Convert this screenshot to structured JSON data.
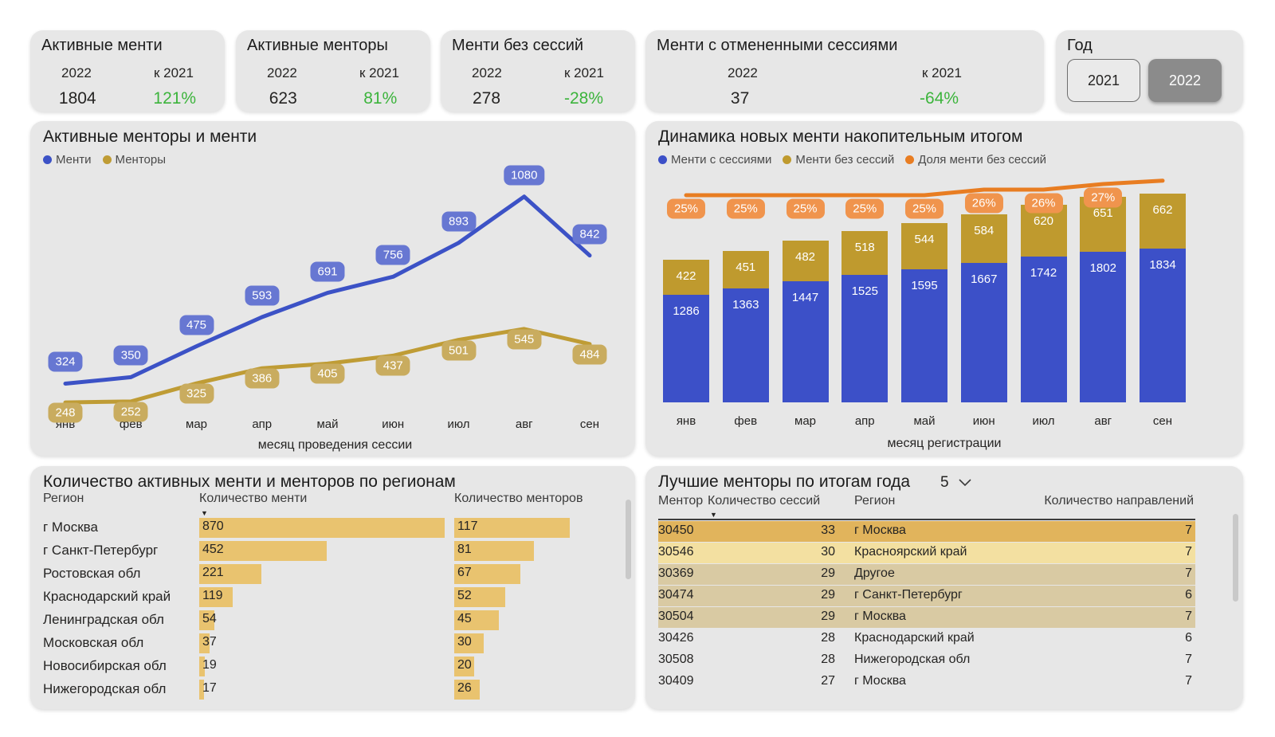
{
  "colors": {
    "positive_green": "#3cb43c",
    "mentee_blue": "#3c52c6",
    "mentor_gold": "#bf9c35",
    "share_orange": "#e87d22",
    "table_bar_gold": "#e9c36f",
    "panel_gray": "#e7e7e7",
    "selected_year_gray": "#8b8b8b"
  },
  "kpi_cards": [
    {
      "title": "Активные менти",
      "year_label": "2022",
      "compare_label": "к 2021",
      "value": "1804",
      "delta": "121%"
    },
    {
      "title": "Активные менторы",
      "year_label": "2022",
      "compare_label": "к 2021",
      "value": "623",
      "delta": "81%"
    },
    {
      "title": "Менти без сессий",
      "year_label": "2022",
      "compare_label": "к 2021",
      "value": "278",
      "delta": "-28%"
    },
    {
      "title": "Менти с отмененными сессиями",
      "year_label": "2022",
      "compare_label": "к 2021",
      "value": "37",
      "delta": "-64%"
    }
  ],
  "year_slicer": {
    "label": "Год",
    "options": [
      {
        "label": "2021",
        "selected": false
      },
      {
        "label": "2022",
        "selected": true
      }
    ]
  },
  "chart_data": [
    {
      "type": "line",
      "title": "Активные менторы и менти",
      "x": [
        "янв",
        "фев",
        "мар",
        "апр",
        "май",
        "июн",
        "июл",
        "авг",
        "сен"
      ],
      "xlabel": "месяц проведения сессии",
      "legend_position": "top-left",
      "data_labels": true,
      "series": [
        {
          "name": "Менти",
          "color": "#3c52c6",
          "label_bg": "#6777d2",
          "values": [
            324,
            350,
            475,
            593,
            691,
            756,
            893,
            1080,
            842
          ]
        },
        {
          "name": "Менторы",
          "color": "#bf9c35",
          "label_bg": "#c9ac5f",
          "values": [
            248,
            252,
            325,
            386,
            405,
            437,
            501,
            545,
            484
          ]
        }
      ]
    },
    {
      "type": "bar",
      "stacked": true,
      "title": "Динамика новых менти накопительным итогом",
      "x": [
        "янв",
        "фев",
        "мар",
        "апр",
        "май",
        "июн",
        "июл",
        "авг",
        "сен"
      ],
      "xlabel": "месяц регистрации",
      "legend_position": "top-left",
      "data_labels": true,
      "series": [
        {
          "name": "Менти с сессиями",
          "color": "#3c50c8",
          "values": [
            1286,
            1363,
            1447,
            1525,
            1595,
            1667,
            1742,
            1802,
            1834
          ]
        },
        {
          "name": "Менти без сессий",
          "color": "#bf9a2e",
          "values": [
            422,
            451,
            482,
            518,
            544,
            584,
            620,
            651,
            662
          ]
        }
      ],
      "percent_series": {
        "name": "Доля менти без сессий",
        "color": "#e87d22",
        "label_bg": "#f0944d",
        "values": [
          25,
          25,
          25,
          25,
          25,
          26,
          26,
          27,
          null
        ],
        "labels": [
          "25%",
          "25%",
          "25%",
          "25%",
          "25%",
          "26%",
          "26%",
          "27%",
          ""
        ]
      }
    },
    {
      "type": "table",
      "title": "Количество активных менти и менторов по регионам",
      "columns": [
        "Регион",
        "Количество менти",
        "Количество менторов"
      ],
      "sorted_by": "Количество менти",
      "rows": [
        [
          "г Москва",
          870,
          117
        ],
        [
          "г Санкт-Петербург",
          452,
          81
        ],
        [
          "Ростовская обл",
          221,
          67
        ],
        [
          "Краснодарский край",
          119,
          52
        ],
        [
          "Ленинградская обл",
          54,
          45
        ],
        [
          "Московская обл",
          37,
          30
        ],
        [
          "Новосибирская обл",
          19,
          20
        ],
        [
          "Нижегородская обл",
          17,
          26
        ]
      ]
    },
    {
      "type": "table",
      "title": "Лучшие менторы по итогам года",
      "top_n": "5",
      "columns": [
        "Ментор",
        "Количество сессий",
        "Регион",
        "Количество направлений"
      ],
      "sorted_by": "Количество сессий",
      "rows": [
        [
          "30450",
          33,
          "г Москва",
          7
        ],
        [
          "30546",
          30,
          "Красноярский край",
          7
        ],
        [
          "30369",
          29,
          "Другое",
          7
        ],
        [
          "30474",
          29,
          "г Санкт-Петербург",
          6
        ],
        [
          "30504",
          29,
          "г Москва",
          7
        ],
        [
          "30426",
          28,
          "Краснодарский край",
          6
        ],
        [
          "30508",
          28,
          "Нижегородская обл",
          7
        ],
        [
          "30409",
          27,
          "г Москва",
          7
        ]
      ],
      "row_highlights": [
        "#e1b45c",
        "#f3e0a1",
        "#d9caa3",
        "#d9caa3",
        "#d9caa3",
        "",
        "",
        ""
      ]
    }
  ]
}
